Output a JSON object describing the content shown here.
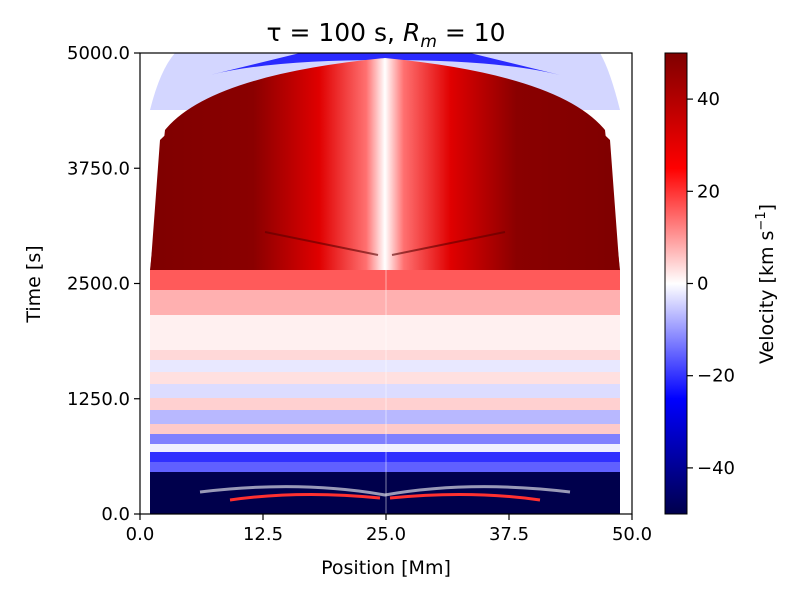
{
  "chart_data": {
    "type": "heatmap",
    "title_prefix": "τ = 100 s, ",
    "title_symbol": "R",
    "title_subscript": "m",
    "title_suffix": " = 10",
    "xlabel": "Position [Mm]",
    "ylabel": "Time [s]",
    "xlim": [
      0,
      50
    ],
    "ylim": [
      0,
      5000
    ],
    "x_ticks": [
      0,
      12.5,
      25,
      37.5,
      50
    ],
    "x_tick_labels": [
      "0.0",
      "12.5",
      "25.0",
      "37.5",
      "50.0"
    ],
    "y_ticks": [
      0,
      1250,
      2500,
      3750,
      5000
    ],
    "y_tick_labels": [
      "0.0",
      "1250.0",
      "2500.0",
      "3750.0",
      "5000.0"
    ],
    "colorbar": {
      "label_prefix": "Velocity [km s",
      "label_exp": "−1",
      "label_suffix": "]",
      "range": [
        -50,
        50
      ],
      "ticks": [
        40,
        20,
        0,
        -20,
        -40
      ],
      "tick_labels": [
        "40",
        "20",
        "0",
        "−20",
        "−40"
      ],
      "colormap": "seismic",
      "colors": {
        "min": "#00004c",
        "low": "#0000ff",
        "mid": "#ffffff",
        "high": "#ff0000",
        "max": "#7f0000"
      }
    },
    "regions": [
      {
        "t_range": [
          0,
          300
        ],
        "velocity_approx": -50,
        "note": "strong downflow near start"
      },
      {
        "t_range": [
          300,
          1200
        ],
        "velocity_approx": -15,
        "note": "oscillating bands"
      },
      {
        "t_range": [
          1200,
          2600
        ],
        "velocity_approx": 5,
        "note": "weak oscillations"
      },
      {
        "t_range": [
          2600,
          4700
        ],
        "velocity_approx": 50,
        "note": "strong upflow, symmetric about 25 Mm"
      },
      {
        "t_range": [
          4700,
          5000
        ],
        "velocity_approx": -10,
        "note": "reversal at top"
      }
    ]
  }
}
